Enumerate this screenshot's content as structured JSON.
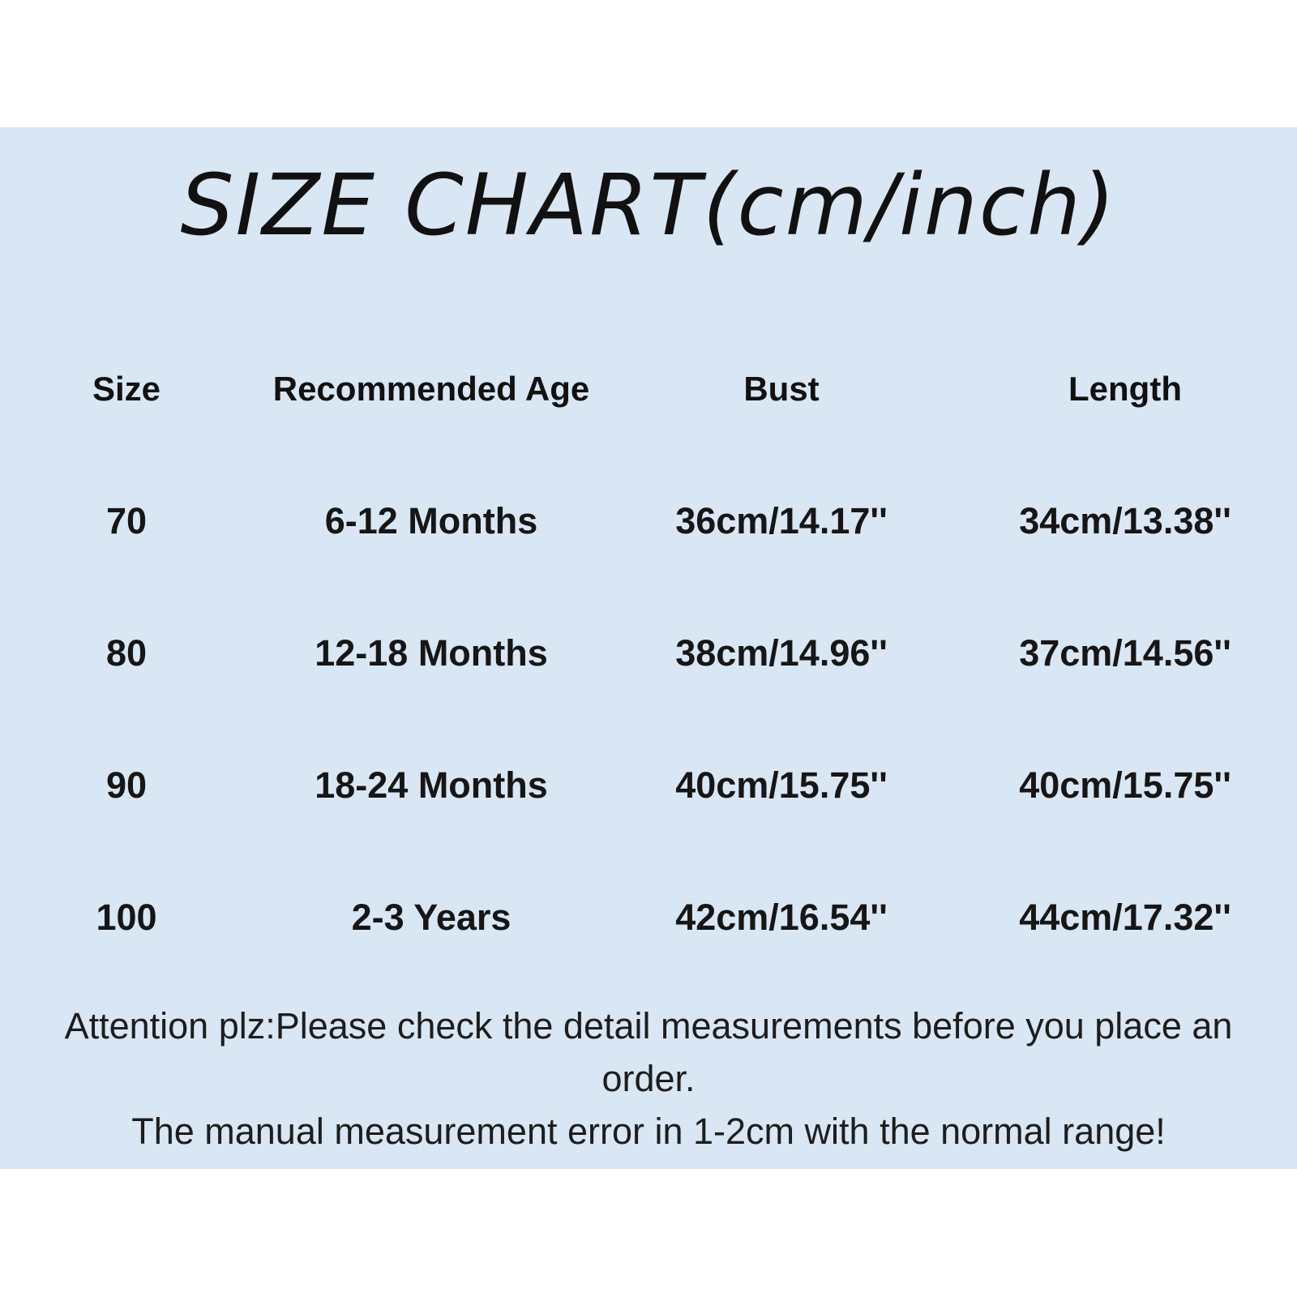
{
  "chart_data": {
    "type": "table",
    "title": "SIZE CHART(cm/inch)",
    "columns": [
      "Size",
      "Recommended Age",
      "Bust",
      "Length"
    ],
    "rows": [
      [
        "70",
        "6-12 Months",
        "36cm/14.17''",
        "34cm/13.38''"
      ],
      [
        "80",
        "12-18 Months",
        "38cm/14.96''",
        "37cm/14.56''"
      ],
      [
        "90",
        "18-24 Months",
        "40cm/15.75''",
        "40cm/15.75''"
      ],
      [
        "100",
        "2-3 Years",
        "42cm/16.54''",
        "44cm/17.32''"
      ]
    ],
    "notes": [
      "Attention plz:Please check the detail measurements before you place an",
      "order.",
      "The manual measurement error in 1-2cm with the normal range!"
    ]
  },
  "colors": {
    "page_background": "#ffffff",
    "panel_background": "#d9e6f3",
    "text": "#161616"
  }
}
